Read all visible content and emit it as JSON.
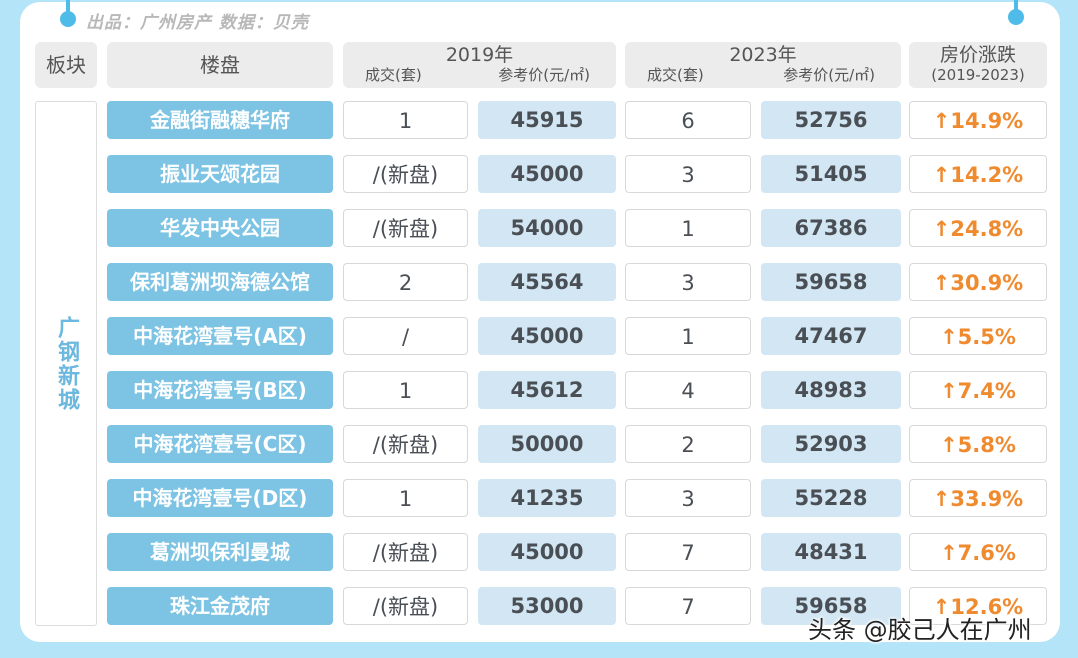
{
  "credit": "出品：广州房产  数据：贝壳",
  "headers": {
    "region": "板块",
    "project": "楼盘",
    "y2019": {
      "title": "2019年",
      "deals": "成交(套)",
      "price": "参考价(元/㎡)"
    },
    "y2023": {
      "title": "2023年",
      "deals": "成交(套)",
      "price": "参考价(元/㎡)"
    },
    "change": {
      "title": "房价涨跌",
      "sub": "(2019-2023)"
    }
  },
  "region_name": "广钢新城",
  "colors": {
    "name_bg": "#7dc3e3",
    "price_bg": "#d2e7f3",
    "up": "#ef8a2f",
    "frame": "#b3e4f8"
  },
  "rows": [
    {
      "name": "金融街融穗华府",
      "deals2019": "1",
      "price2019": "45915",
      "deals2023": "6",
      "price2023": "52756",
      "change": "↑14.9%"
    },
    {
      "name": "振业天颂花园",
      "deals2019": "/(新盘)",
      "price2019": "45000",
      "deals2023": "3",
      "price2023": "51405",
      "change": "↑14.2%"
    },
    {
      "name": "华发中央公园",
      "deals2019": "/(新盘)",
      "price2019": "54000",
      "deals2023": "1",
      "price2023": "67386",
      "change": "↑24.8%"
    },
    {
      "name": "保利葛洲坝海德公馆",
      "deals2019": "2",
      "price2019": "45564",
      "deals2023": "3",
      "price2023": "59658",
      "change": "↑30.9%"
    },
    {
      "name": "中海花湾壹号(A区)",
      "deals2019": "/",
      "price2019": "45000",
      "deals2023": "1",
      "price2023": "47467",
      "change": "↑5.5%"
    },
    {
      "name": "中海花湾壹号(B区)",
      "deals2019": "1",
      "price2019": "45612",
      "deals2023": "4",
      "price2023": "48983",
      "change": "↑7.4%"
    },
    {
      "name": "中海花湾壹号(C区)",
      "deals2019": "/(新盘)",
      "price2019": "50000",
      "deals2023": "2",
      "price2023": "52903",
      "change": "↑5.8%"
    },
    {
      "name": "中海花湾壹号(D区)",
      "deals2019": "1",
      "price2019": "41235",
      "deals2023": "3",
      "price2023": "55228",
      "change": "↑33.9%"
    },
    {
      "name": "葛洲坝保利曼城",
      "deals2019": "/(新盘)",
      "price2019": "45000",
      "deals2023": "7",
      "price2023": "48431",
      "change": "↑7.6%"
    },
    {
      "name": "珠江金茂府",
      "deals2019": "/(新盘)",
      "price2019": "53000",
      "deals2023": "7",
      "price2023": "59658",
      "change": "↑12.6%"
    }
  ],
  "watermark": "头条 @胶己人在广州"
}
